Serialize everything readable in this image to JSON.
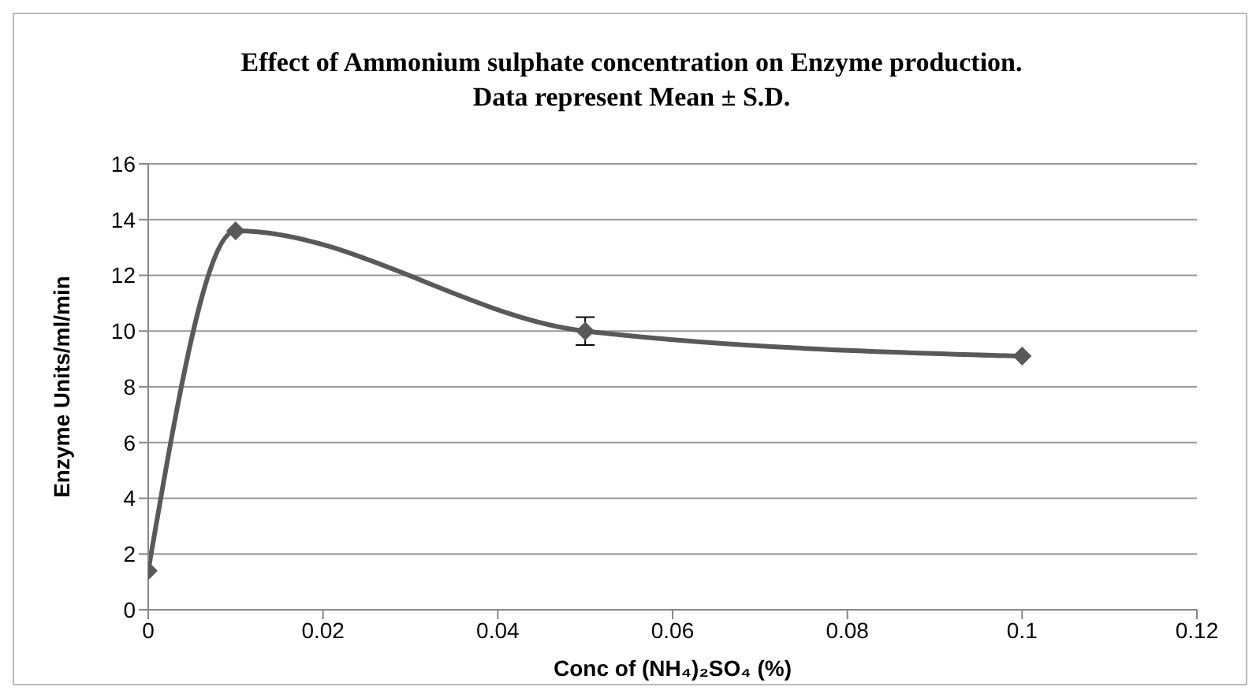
{
  "chart_data": {
    "type": "line",
    "title": "Effect of Ammonium sulphate concentration on Enzyme production. Data represent Mean ± S.D.",
    "xlabel": "Conc of (NH₄)₂SO₄ (%)",
    "ylabel": "Enzyme Units/ml/min",
    "x": [
      0,
      0.01,
      0.05,
      0.1
    ],
    "series": [
      {
        "color": "#595959",
        "values": [
          1.4,
          13.6,
          10.0,
          9.1
        ],
        "errors": [
          null,
          null,
          0.5,
          null
        ]
      }
    ],
    "xlim": [
      0,
      0.12
    ],
    "xticks": [
      0,
      0.02,
      0.04,
      0.06,
      0.08,
      0.1,
      0.12
    ],
    "ylim": [
      0,
      16
    ],
    "yticks": [
      0,
      2,
      4,
      6,
      8,
      10,
      12,
      14,
      16
    ],
    "grid": "y",
    "marker": "diamond",
    "line_style": "solid"
  }
}
